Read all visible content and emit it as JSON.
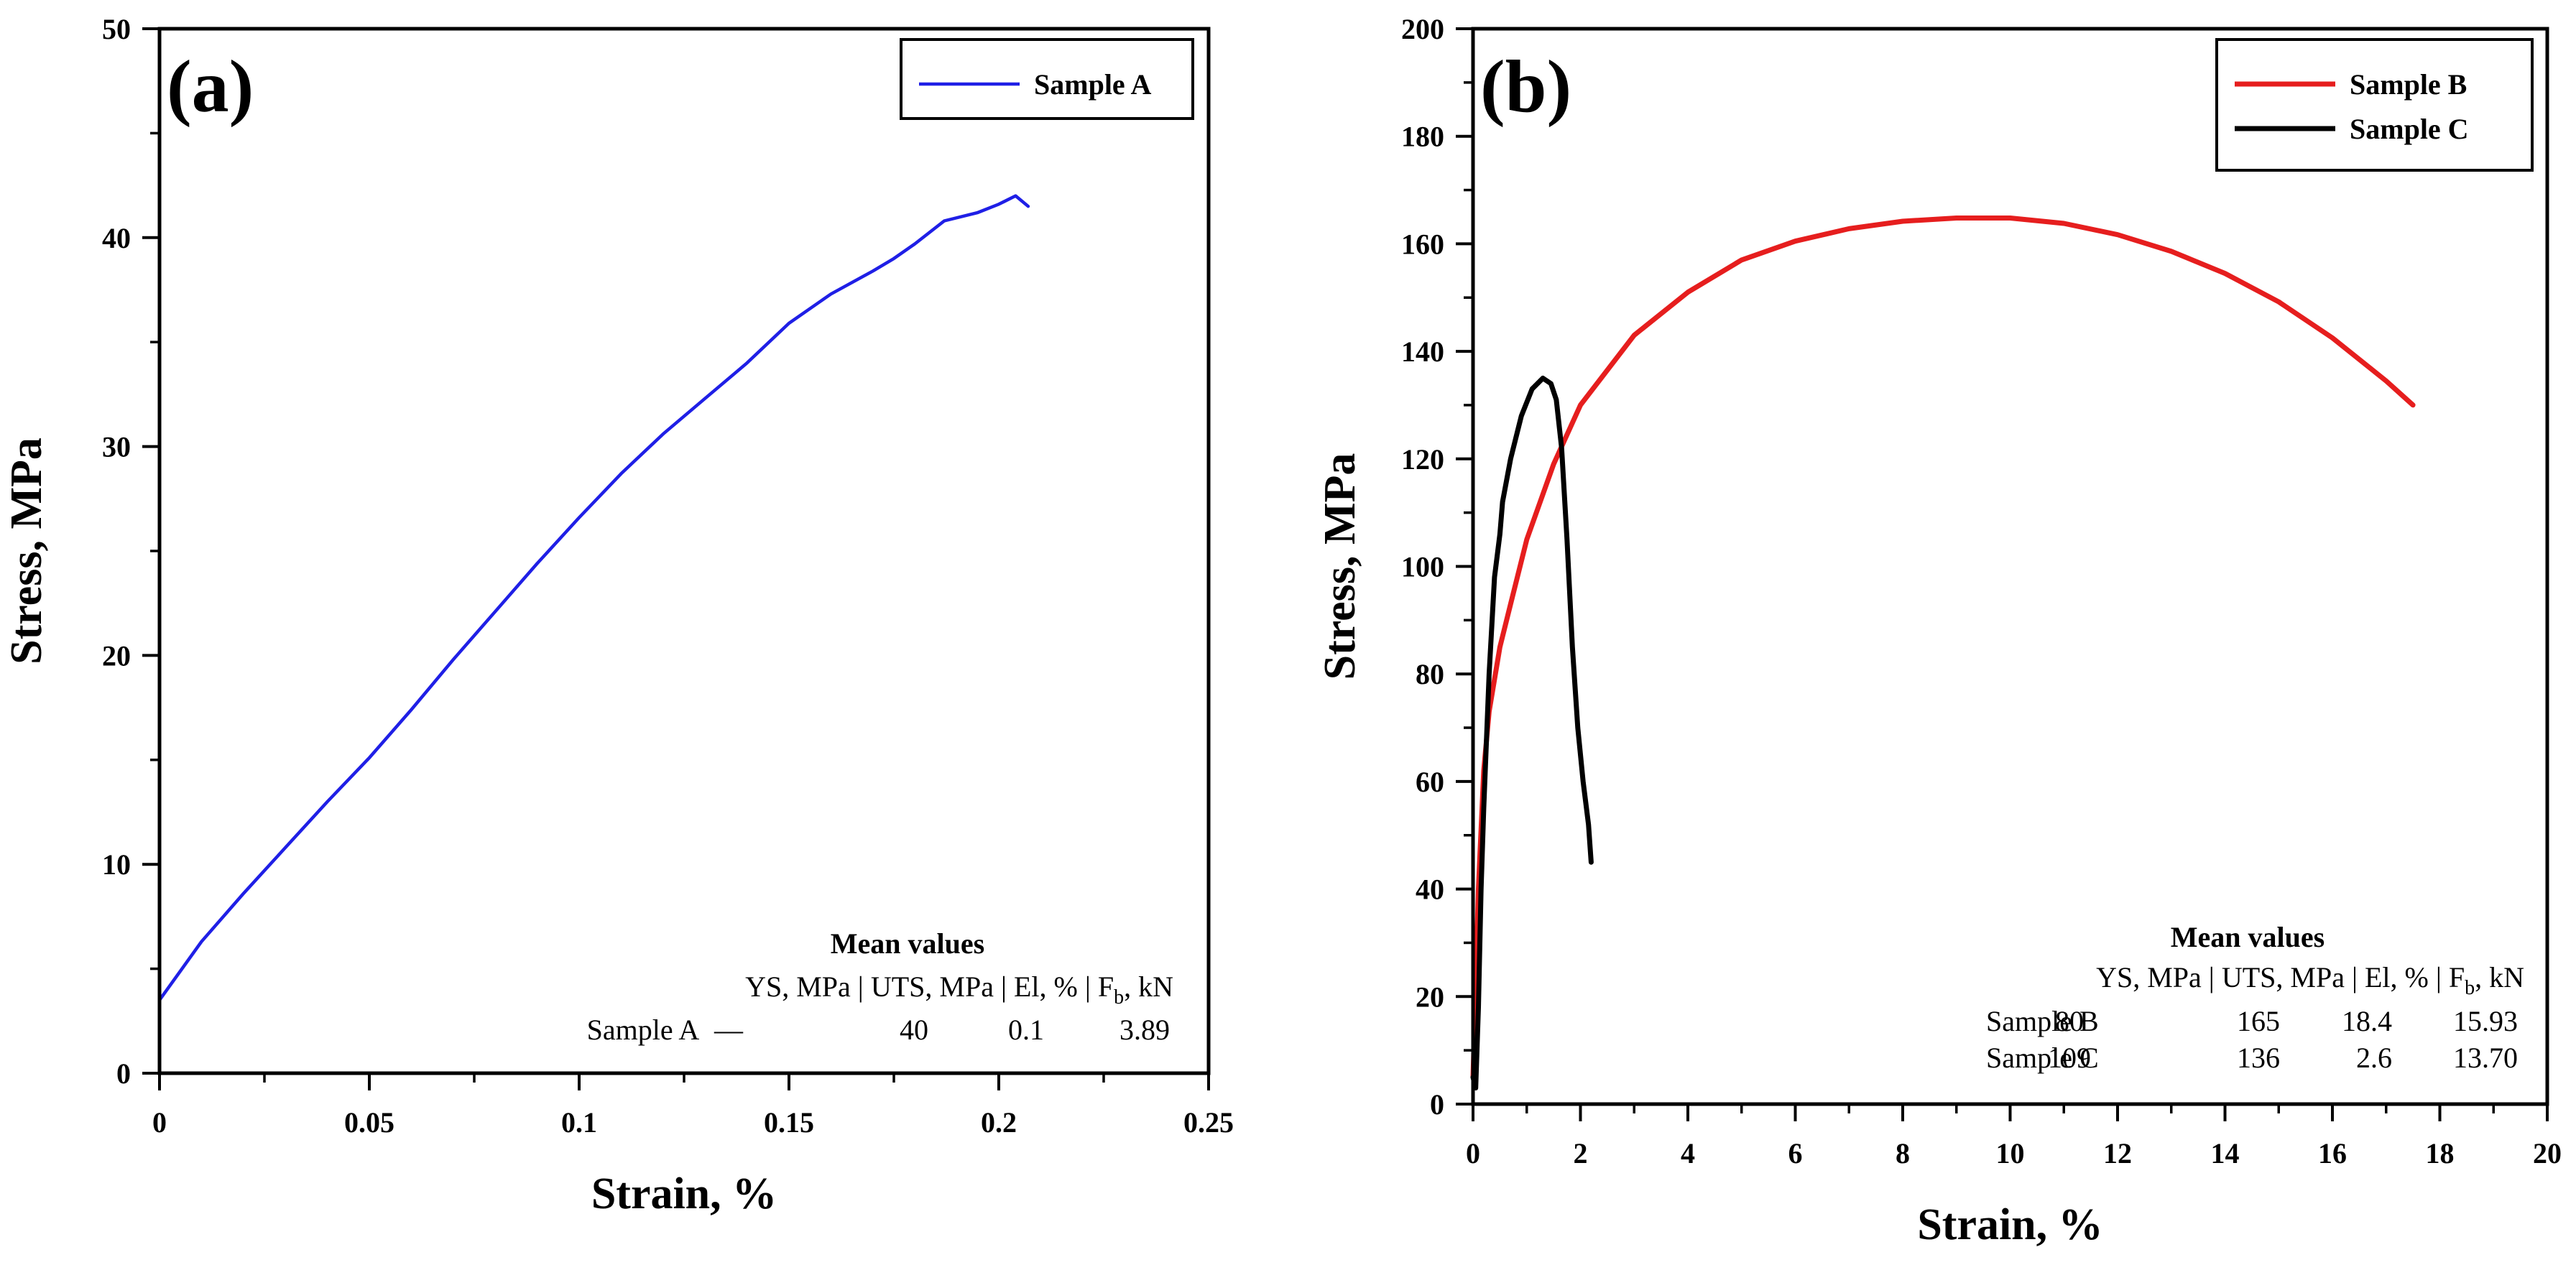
{
  "chart_data": [
    {
      "type": "line",
      "panel_label": "(a)",
      "xlabel": "Strain, %",
      "ylabel": "Stress, MPa",
      "xlim": [
        0,
        0.25
      ],
      "ylim": [
        0,
        50
      ],
      "xticks": [
        0,
        0.05,
        0.1,
        0.15,
        0.2,
        0.25
      ],
      "xtick_labels": [
        "0",
        "0.05",
        "0.1",
        "0.15",
        "0.2",
        "0.25"
      ],
      "yticks": [
        0,
        10,
        20,
        30,
        40,
        50
      ],
      "ytick_labels": [
        "0",
        "10",
        "20",
        "30",
        "40",
        "50"
      ],
      "legend_position": "top-right",
      "series": [
        {
          "name": "Sample A",
          "color": "#1f1fe6",
          "x": [
            0,
            0.01,
            0.02,
            0.03,
            0.04,
            0.05,
            0.06,
            0.07,
            0.08,
            0.09,
            0.1,
            0.11,
            0.12,
            0.13,
            0.14,
            0.15,
            0.16,
            0.17,
            0.175,
            0.18,
            0.187,
            0.195,
            0.2,
            0.204,
            0.207
          ],
          "y": [
            3.5,
            6.3,
            8.6,
            10.8,
            13.0,
            15.1,
            17.4,
            19.8,
            22.1,
            24.4,
            26.6,
            28.7,
            30.6,
            32.3,
            34.0,
            35.9,
            37.3,
            38.4,
            39.0,
            39.7,
            40.8,
            41.2,
            41.6,
            42.0,
            41.5
          ]
        }
      ],
      "table": {
        "title": "Mean values",
        "header": [
          "YS, MPa",
          "UTS, MPa",
          "El, %",
          "F",
          "b",
          ", kN"
        ],
        "rows": [
          {
            "label": "Sample A",
            "ys": "—",
            "uts": "40",
            "el": "0.1",
            "fb": "3.89"
          }
        ]
      }
    },
    {
      "type": "line",
      "panel_label": "(b)",
      "xlabel": "Strain, %",
      "ylabel": "Stress, MPa",
      "xlim": [
        0,
        20
      ],
      "ylim": [
        0,
        200
      ],
      "xticks": [
        0,
        2,
        4,
        6,
        8,
        10,
        12,
        14,
        16,
        18,
        20
      ],
      "xtick_labels": [
        "0",
        "2",
        "4",
        "6",
        "8",
        "10",
        "12",
        "14",
        "16",
        "18",
        "20"
      ],
      "yticks": [
        0,
        20,
        40,
        60,
        80,
        100,
        120,
        140,
        160,
        180,
        200
      ],
      "ytick_labels": [
        "0",
        "20",
        "40",
        "60",
        "80",
        "100",
        "120",
        "140",
        "160",
        "180",
        "200"
      ],
      "legend_position": "top-right",
      "series": [
        {
          "name": "Sample B",
          "color": "#e61e1e",
          "x": [
            0,
            0.1,
            0.2,
            0.3,
            0.5,
            0.7,
            1.0,
            1.5,
            2.0,
            3.0,
            4.0,
            5.0,
            6.0,
            7.0,
            8.0,
            9.0,
            10.0,
            11.0,
            12.0,
            13.0,
            14.0,
            15.0,
            16.0,
            17.0,
            17.5
          ],
          "y": [
            5,
            40,
            62,
            73,
            85,
            93,
            105,
            119,
            130,
            143,
            151,
            157,
            160.5,
            162.8,
            164.2,
            164.8,
            164.8,
            163.8,
            161.7,
            158.6,
            154.5,
            149.2,
            142.5,
            134.5,
            130
          ]
        },
        {
          "name": "Sample C",
          "color": "#000000",
          "x": [
            0,
            0.05,
            0.1,
            0.15,
            0.2,
            0.3,
            0.4,
            0.5,
            0.55,
            0.7,
            0.9,
            1.1,
            1.3,
            1.45,
            1.55,
            1.65,
            1.75,
            1.85,
            1.95,
            2.05,
            2.15,
            2.2
          ],
          "y": [
            5,
            3,
            18,
            40,
            55,
            80,
            98,
            106,
            112,
            120,
            128,
            133,
            135,
            134,
            131,
            122,
            105,
            85,
            70,
            60,
            52,
            45
          ]
        }
      ],
      "table": {
        "title": "Mean values",
        "header": [
          "YS, MPa",
          "UTS, MPa",
          "El, %",
          "F",
          "b",
          ", kN"
        ],
        "rows": [
          {
            "label": "Sample B",
            "ys": "80",
            "uts": "165",
            "el": "18.4",
            "fb": "15.93"
          },
          {
            "label": "Sample C",
            "ys": "109",
            "uts": "136",
            "el": "2.6",
            "fb": "13.70"
          }
        ]
      }
    }
  ]
}
